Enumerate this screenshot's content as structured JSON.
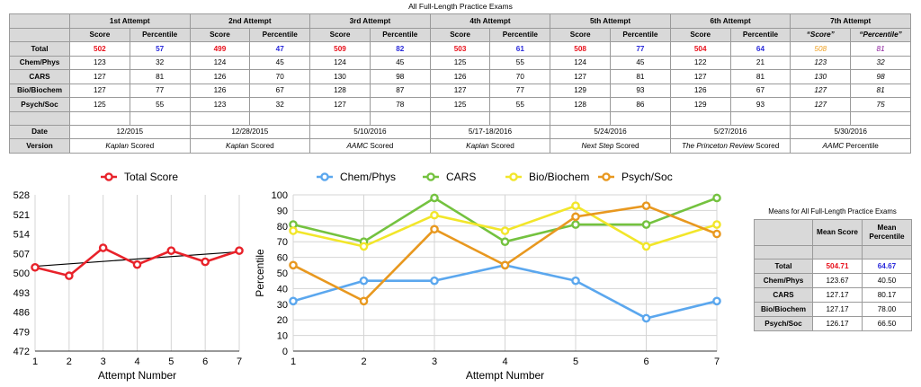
{
  "exam_table": {
    "title": "All Full-Length Practice Exams",
    "attempts": [
      "1st Attempt",
      "2nd Attempt",
      "3rd Attempt",
      "4th Attempt",
      "5th Attempt",
      "6th Attempt",
      "7th Attempt"
    ],
    "subheaders": [
      "Score",
      "Percentile",
      "Score",
      "Percentile",
      "Score",
      "Percentile",
      "Score",
      "Percentile",
      "Score",
      "Percentile",
      "Score",
      "Percentile",
      "“Score”",
      "“Percentile”"
    ],
    "rows": [
      {
        "label": "Total",
        "cells": [
          "502",
          "57",
          "499",
          "47",
          "509",
          "82",
          "503",
          "61",
          "508",
          "77",
          "504",
          "64",
          "508",
          "81"
        ]
      },
      {
        "label": "Chem/Phys",
        "cells": [
          "123",
          "32",
          "124",
          "45",
          "124",
          "45",
          "125",
          "55",
          "124",
          "45",
          "122",
          "21",
          "123",
          "32"
        ]
      },
      {
        "label": "CARS",
        "cells": [
          "127",
          "81",
          "126",
          "70",
          "130",
          "98",
          "126",
          "70",
          "127",
          "81",
          "127",
          "81",
          "130",
          "98"
        ]
      },
      {
        "label": "Bio/Biochem",
        "cells": [
          "127",
          "77",
          "126",
          "67",
          "128",
          "87",
          "127",
          "77",
          "129",
          "93",
          "126",
          "67",
          "127",
          "81"
        ]
      },
      {
        "label": "Psych/Soc",
        "cells": [
          "125",
          "55",
          "123",
          "32",
          "127",
          "78",
          "125",
          "55",
          "128",
          "86",
          "129",
          "93",
          "127",
          "75"
        ]
      }
    ],
    "date_label": "Date",
    "dates": [
      "12/2015",
      "12/28/2015",
      "5/10/2016",
      "5/17-18/2016",
      "5/24/2016",
      "5/27/2016",
      "5/30/2016"
    ],
    "version_label": "Version",
    "versions": [
      {
        "em": "Kaplan",
        "rest": " Scored"
      },
      {
        "em": "Kaplan",
        "rest": " Scored"
      },
      {
        "em": "AAMC",
        "rest": " Scored"
      },
      {
        "em": "Kaplan",
        "rest": " Scored"
      },
      {
        "em": "Next Step",
        "rest": " Scored"
      },
      {
        "em": "The Princeton Review",
        "rest": " Scored"
      },
      {
        "em": "AAMC",
        "rest": " Percentile"
      }
    ]
  },
  "means": {
    "title": "Means for All Full-Length Practice Exams",
    "col1": "Mean Score",
    "col2": "Mean Percentile",
    "rows": [
      {
        "label": "Total",
        "score": "504.71",
        "pct": "64.67"
      },
      {
        "label": "Chem/Phys",
        "score": "123.67",
        "pct": "40.50"
      },
      {
        "label": "CARS",
        "score": "127.17",
        "pct": "80.17"
      },
      {
        "label": "Bio/Biochem",
        "score": "127.17",
        "pct": "78.00"
      },
      {
        "label": "Psych/Soc",
        "score": "126.17",
        "pct": "66.50"
      }
    ]
  },
  "chart_data": [
    {
      "type": "line",
      "x": [
        1,
        2,
        3,
        4,
        5,
        6,
        7
      ],
      "series": [
        {
          "name": "Total Score",
          "values": [
            502,
            499,
            509,
            503,
            508,
            504,
            508
          ],
          "color": "#e8222a"
        }
      ],
      "trendline": {
        "start": 502.4,
        "end": 507.6,
        "color": "#000000"
      },
      "xlabel": "Attempt Number",
      "ylabel": "",
      "ylim": [
        472,
        528
      ],
      "yticks": [
        472,
        479,
        486,
        493,
        500,
        507,
        514,
        521,
        528
      ],
      "legend": "top-center",
      "grid": "vertical"
    },
    {
      "type": "line",
      "x": [
        1,
        2,
        3,
        4,
        5,
        6,
        7
      ],
      "series": [
        {
          "name": "Chem/Phys",
          "values": [
            32,
            45,
            45,
            55,
            45,
            21,
            32
          ],
          "color": "#5ba7ee"
        },
        {
          "name": "CARS",
          "values": [
            81,
            70,
            98,
            70,
            81,
            81,
            98
          ],
          "color": "#74c23f"
        },
        {
          "name": "Bio/Biochem",
          "values": [
            77,
            67,
            87,
            77,
            93,
            67,
            81
          ],
          "color": "#f2e62a"
        },
        {
          "name": "Psych/Soc",
          "values": [
            55,
            32,
            78,
            55,
            86,
            93,
            75
          ],
          "color": "#e8981f"
        }
      ],
      "xlabel": "Attempt Number",
      "ylabel": "Percentile",
      "ylim": [
        0,
        100
      ],
      "yticks": [
        0,
        10,
        20,
        30,
        40,
        50,
        60,
        70,
        80,
        90,
        100
      ],
      "legend": "top-center",
      "grid": "both"
    }
  ]
}
